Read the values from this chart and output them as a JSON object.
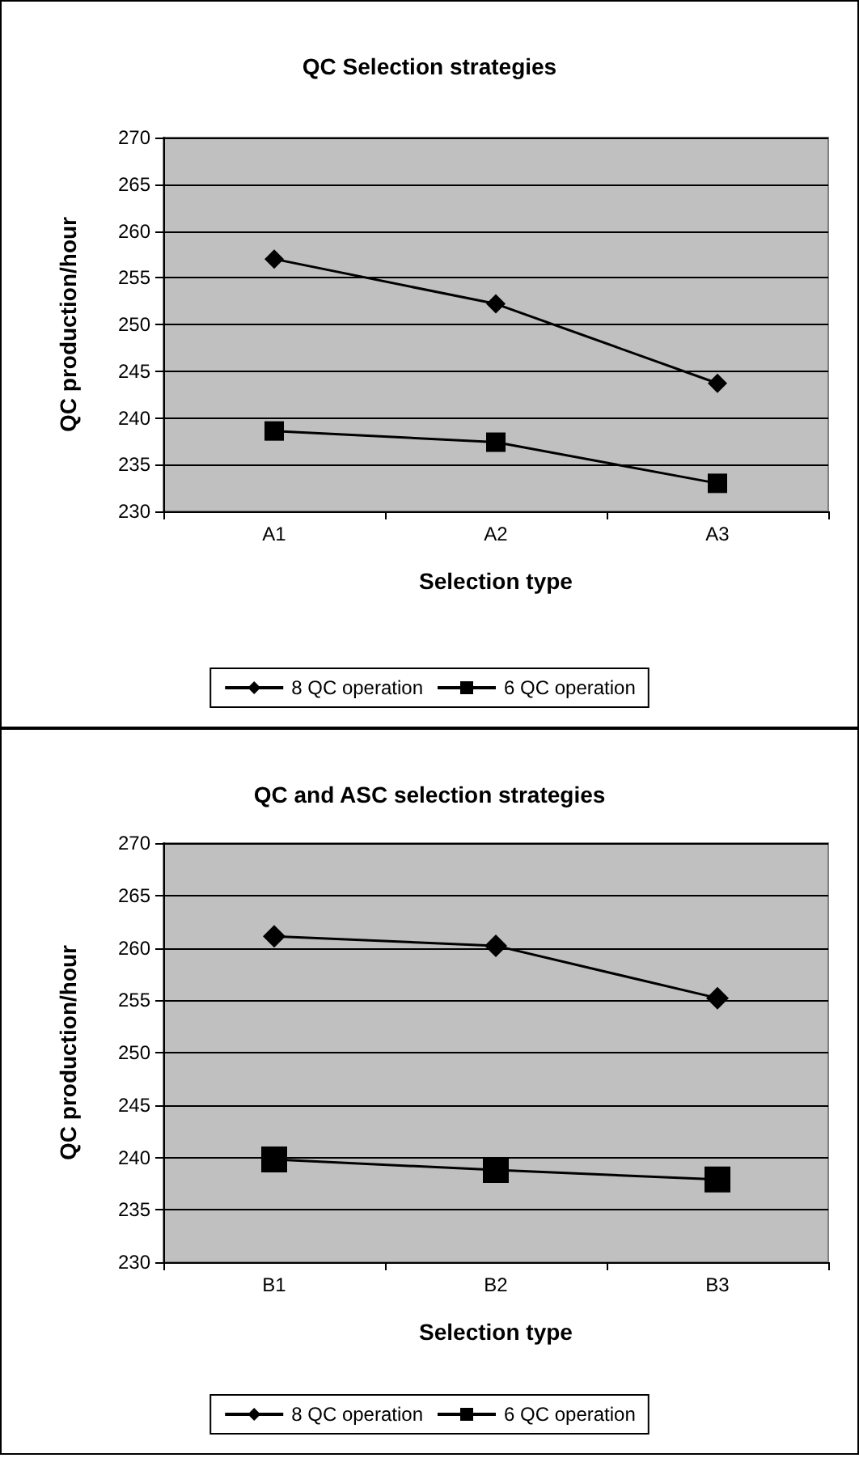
{
  "chart_data": [
    {
      "type": "line",
      "title": "QC Selection strategies",
      "xlabel": "Selection type",
      "ylabel": "QC production/hour",
      "categories": [
        "A1",
        "A2",
        "A3"
      ],
      "ylim": [
        230,
        270
      ],
      "yticks": [
        230,
        235,
        240,
        245,
        250,
        255,
        260,
        265,
        270
      ],
      "grid": "y",
      "legend": "bottom",
      "series": [
        {
          "name": "8 QC operation",
          "color": "#000000",
          "marker": "diamond",
          "values": [
            257.0,
            252.2,
            243.7
          ]
        },
        {
          "name": "6 QC operation",
          "color": "#000000",
          "marker": "square",
          "values": [
            238.6,
            237.4,
            233.0
          ]
        }
      ]
    },
    {
      "type": "line",
      "title": "QC and ASC selection strategies",
      "xlabel": "Selection type",
      "ylabel": "QC production/hour",
      "categories": [
        "B1",
        "B2",
        "B3"
      ],
      "ylim": [
        230,
        270
      ],
      "yticks": [
        230,
        235,
        240,
        245,
        250,
        255,
        260,
        265,
        270
      ],
      "grid": "y",
      "legend": "bottom",
      "series": [
        {
          "name": "8 QC operation",
          "color": "#000000",
          "marker": "diamond",
          "values": [
            261.1,
            260.2,
            255.2
          ]
        },
        {
          "name": "6 QC operation",
          "color": "#000000",
          "marker": "square",
          "values": [
            239.8,
            238.8,
            237.9
          ]
        }
      ]
    }
  ]
}
